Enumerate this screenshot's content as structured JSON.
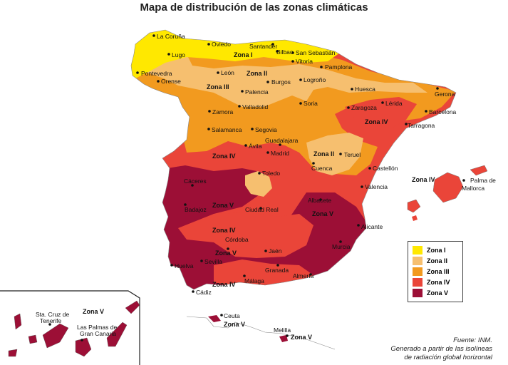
{
  "title": "Mapa de distribución de las zonas climáticas",
  "colors": {
    "zona_I": "#ffe800",
    "zona_II": "#f6bf6f",
    "zona_III": "#f29a1f",
    "zona_IV": "#ea4539",
    "zona_V": "#9c0f36"
  },
  "legend": [
    {
      "label": "Zona I",
      "color": "#ffe800"
    },
    {
      "label": "Zona II",
      "color": "#f6bf6f"
    },
    {
      "label": "Zona III",
      "color": "#f29a1f"
    },
    {
      "label": "Zona IV",
      "color": "#ea4539"
    },
    {
      "label": "Zona V",
      "color": "#9c0f36"
    }
  ],
  "cities": [
    "La Coruña",
    "Oviedo",
    "Santander",
    "Bilbao",
    "San Sebastián",
    "Lugo",
    "Vitoria",
    "Pamplona",
    "Pontevedra",
    "Orense",
    "León",
    "Burgos",
    "Logroño",
    "Huesca",
    "Gerona",
    "Palencia",
    "Lérida",
    "Barcelona",
    "Zamora",
    "Valladolid",
    "Soria",
    "Zaragoza",
    "Tarragona",
    "Salamanca",
    "Segovia",
    "Guadalajara",
    "Ávila",
    "Madrid",
    "Teruel",
    "Cuenca",
    "Castellón",
    "Toledo",
    "Palma de Mallorca",
    "Cáceres",
    "Valencia",
    "Badajoz",
    "Ciudad Real",
    "Albacete",
    "Alicante",
    "Córdoba",
    "Jaén",
    "Murcia",
    "Sevilla",
    "Huelva",
    "Granada",
    "Almería",
    "Málaga",
    "Cádiz",
    "Ceuta",
    "Melilla",
    "Sta. Cruz de Tenerife",
    "Las Palmas de Gran Canaria"
  ],
  "city_labels": {
    "la_coruna": "La Coruña",
    "oviedo": "Oviedo",
    "santander": "Santander",
    "bilbao": "Bilbao",
    "san_sebastian": "San Sebastián",
    "lugo": "Lugo",
    "vitoria": "Vitoria",
    "pamplona": "Pamplona",
    "pontevedra": "Pontevedra",
    "orense": "Orense",
    "leon": "León",
    "burgos": "Burgos",
    "logrono": "Logroño",
    "huesca": "Huesca",
    "gerona": "Gerona",
    "palencia": "Palencia",
    "lerida": "Lérida",
    "barcelona": "Barcelona",
    "zamora": "Zamora",
    "valladolid": "Valladolid",
    "soria": "Soria",
    "zaragoza": "Zaragoza",
    "tarragona": "Tarragona",
    "salamanca": "Salamanca",
    "segovia": "Segovia",
    "guadalajara": "Guadalajara",
    "avila": "Ávila",
    "madrid": "Madrid",
    "teruel": "Teruel",
    "cuenca": "Cuenca",
    "castellon": "Castellón",
    "toledo": "Toledo",
    "palma_1": "Palma de",
    "palma_2": "Mallorca",
    "caceres": "Cáceres",
    "valencia": "Valencia",
    "badajoz": "Badajoz",
    "ciudad_real": "Ciudad Real",
    "albacete": "Albacete",
    "alicante": "Alicante",
    "cordoba": "Córdoba",
    "jaen": "Jaén",
    "murcia": "Murcia",
    "sevilla": "Sevilla",
    "huelva": "Huelva",
    "granada": "Granada",
    "almeria": "Almería",
    "malaga": "Málaga",
    "cadiz": "Cádiz",
    "ceuta": "Ceuta",
    "melilla": "Melilla",
    "tenerife_1": "Sta. Cruz de",
    "tenerife_2": "Tenerife",
    "laspalmas_1": "Las Palmas de",
    "laspalmas_2": "Gran Canaria"
  },
  "zone_labels": {
    "z1": "Zona I",
    "z2": "Zona II",
    "z3": "Zona III",
    "z4": "Zona IV",
    "z5": "Zona V"
  },
  "source": {
    "line1": "Fuente: INM.",
    "line2": "Generado a partir de las isolíneas",
    "line3": "de radiación global horizontal"
  }
}
